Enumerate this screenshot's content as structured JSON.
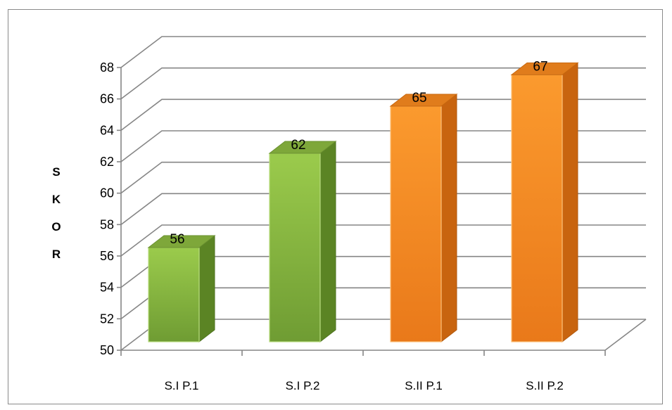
{
  "chart_data": {
    "type": "bar",
    "title": "",
    "xlabel": "",
    "ylabel": "S K O R",
    "ylabel_letters": [
      "S",
      "K",
      "O",
      "R"
    ],
    "ylim": [
      50,
      68
    ],
    "ytick_step": 2,
    "categories": [
      "S.I P.1",
      "S.I P.2",
      "S.II P.1",
      "S.II P.2"
    ],
    "values": [
      56,
      62,
      65,
      67
    ],
    "bar_colors": [
      "#8bbf3f",
      "#8bbf3f",
      "#f7901e",
      "#f7901e"
    ],
    "grid": true,
    "legend": "none",
    "style": "3d-column"
  }
}
